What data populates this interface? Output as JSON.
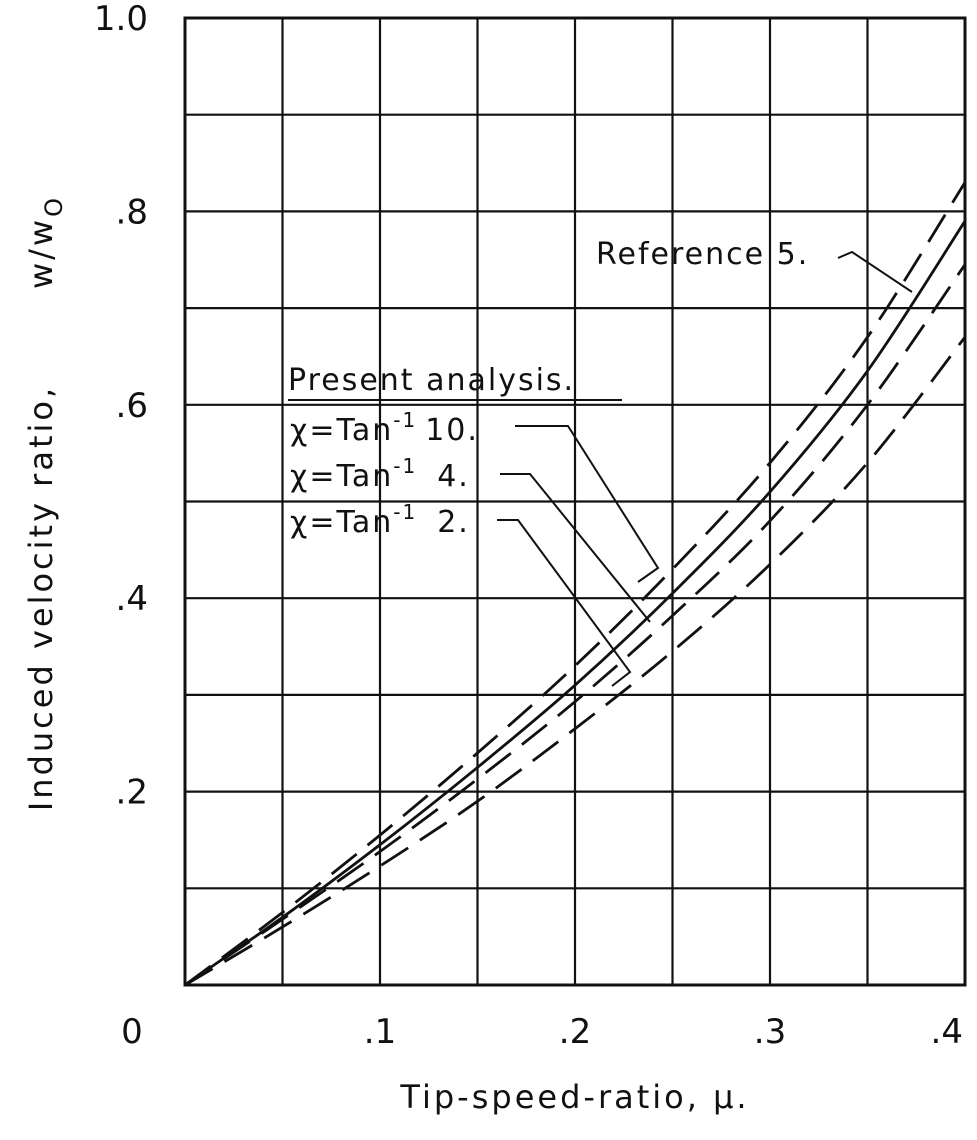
{
  "chart_data": {
    "type": "line",
    "xlabel": "Tip-speed-ratio, μ.",
    "ylabel": "Induced velocity ratio,",
    "ylabel_symbol": "w/w",
    "ylabel_subscript": "O",
    "xlim": [
      0,
      0.4
    ],
    "ylim": [
      0,
      1.0
    ],
    "x_ticks": [
      0,
      0.1,
      0.2,
      0.3,
      0.4
    ],
    "x_tick_labels": [
      "0",
      ".1",
      ".2",
      ".3",
      ".4"
    ],
    "y_ticks": [
      0.2,
      0.4,
      0.6,
      0.8,
      1.0
    ],
    "y_tick_labels": [
      ".2",
      ".4",
      ".6",
      ".8",
      "1.0"
    ],
    "grid": true,
    "annotations": {
      "group_heading": "Present analysis.",
      "reference": "Reference 5."
    },
    "series": [
      {
        "name": "Reference 5.",
        "style": "solid",
        "x": [
          0,
          0.05,
          0.1,
          0.15,
          0.2,
          0.25,
          0.3,
          0.35,
          0.4
        ],
        "y": [
          0,
          0.07,
          0.145,
          0.225,
          0.31,
          0.405,
          0.51,
          0.635,
          0.79
        ]
      },
      {
        "name": "χ=Tan⁻¹ 10.",
        "label_prefix": "χ=Tan",
        "label_exp": "-1",
        "label_value": "10.",
        "style": "dashed",
        "x": [
          0,
          0.05,
          0.1,
          0.15,
          0.2,
          0.25,
          0.3,
          0.35,
          0.4
        ],
        "y": [
          0,
          0.075,
          0.155,
          0.24,
          0.33,
          0.43,
          0.54,
          0.67,
          0.83
        ]
      },
      {
        "name": "χ=Tan⁻¹ 4.",
        "label_prefix": "χ=Tan",
        "label_exp": "-1",
        "label_value": "4.",
        "style": "dashed",
        "x": [
          0,
          0.05,
          0.1,
          0.15,
          0.2,
          0.25,
          0.3,
          0.35,
          0.4
        ],
        "y": [
          0,
          0.068,
          0.138,
          0.213,
          0.293,
          0.382,
          0.48,
          0.6,
          0.745
        ]
      },
      {
        "name": "χ=Tan⁻¹ 2.",
        "label_prefix": "χ=Tan",
        "label_exp": "-1",
        "label_value": "2.",
        "style": "dashed",
        "x": [
          0,
          0.05,
          0.1,
          0.15,
          0.2,
          0.25,
          0.3,
          0.35,
          0.4
        ],
        "y": [
          0,
          0.06,
          0.123,
          0.19,
          0.265,
          0.345,
          0.435,
          0.54,
          0.67
        ]
      }
    ]
  }
}
